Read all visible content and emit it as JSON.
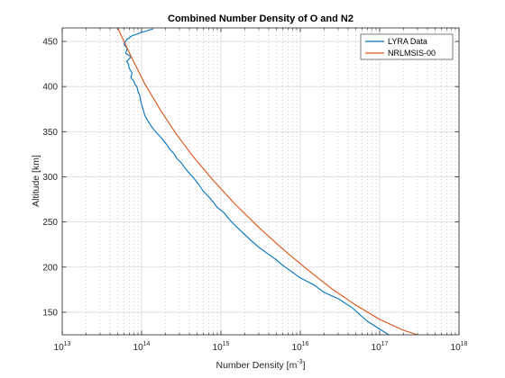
{
  "chart_data": {
    "type": "line",
    "title": "Combined Number Density of O and N2",
    "xlabel": "Number Density [m",
    "xlabel_exp": "-3",
    "xlabel_suffix": "]",
    "ylabel": "Altitude [km]",
    "xscale": "log",
    "xlim": [
      10000000000000.0,
      1e+18
    ],
    "ylim": [
      125,
      465
    ],
    "grid": true,
    "minor_grid": true,
    "legend_position": "top-right",
    "x_ticks": [
      {
        "base": "10",
        "exp": "13"
      },
      {
        "base": "10",
        "exp": "14"
      },
      {
        "base": "10",
        "exp": "15"
      },
      {
        "base": "10",
        "exp": "16"
      },
      {
        "base": "10",
        "exp": "17"
      },
      {
        "base": "10",
        "exp": "18"
      }
    ],
    "y_ticks": [
      "150",
      "200",
      "250",
      "300",
      "350",
      "400",
      "450"
    ],
    "series": [
      {
        "name": "LYRA Data",
        "color": "#0072BD",
        "x": [
          1.3e+17,
          7e+16,
          4.5e+16,
          3e+16,
          2e+16,
          1.5e+16,
          1e+16,
          7500000000000000.0,
          6000000000000000.0,
          5000000000000000.0,
          4000000000000000.0,
          3000000000000000.0,
          2500000000000000.0,
          2000000000000000.0,
          1600000000000000.0,
          1300000000000000.0,
          1100000000000000.0,
          900000000000000.0,
          800000000000000.0,
          700000000000000.0,
          600000000000000.0,
          520000000000000.0,
          460000000000000.0,
          400000000000000.0,
          350000000000000.0,
          320000000000000.0,
          280000000000000.0,
          260000000000000.0,
          230000000000000.0,
          210000000000000.0,
          190000000000000.0,
          170000000000000.0,
          150000000000000.0,
          135000000000000.0,
          120000000000000.0,
          110000000000000.0,
          105000000000000.0,
          100000000000000.0,
          97000000000000.0,
          95000000000000.0,
          90000000000000.0,
          87000000000000.0,
          82000000000000.0,
          80000000000000.0,
          73000000000000.0,
          76000000000000.0,
          70000000000000.0,
          68000000000000.0,
          65000000000000.0,
          74000000000000.0,
          63000000000000.0,
          66000000000000.0,
          60000000000000.0,
          65000000000000.0,
          75000000000000.0,
          100000000000000.0,
          140000000000000.0
        ],
        "y": [
          125,
          140,
          155,
          165,
          172,
          180,
          188,
          196,
          202,
          208,
          214,
          222,
          228,
          236,
          244,
          252,
          260,
          266,
          272,
          278,
          284,
          292,
          298,
          304,
          310,
          315,
          320,
          325,
          330,
          335,
          340,
          345,
          350,
          355,
          362,
          368,
          374,
          380,
          385,
          390,
          395,
          400,
          403,
          406,
          410,
          415,
          420,
          425,
          428,
          433,
          437,
          442,
          447,
          452,
          456,
          460,
          464
        ]
      },
      {
        "name": "NRLMSIS-00",
        "color": "#D95319",
        "x": [
          3e+17,
          2e+17,
          1e+17,
          5e+16,
          2.5e+16,
          1.2e+16,
          6000000000000000.0,
          3000000000000000.0,
          1500000000000000.0,
          800000000000000.0,
          450000000000000.0,
          270000000000000.0,
          170000000000000.0,
          110000000000000.0,
          75000000000000.0,
          50000000000000.0
        ],
        "y": [
          125,
          130,
          142,
          158,
          176,
          198,
          220,
          244,
          270,
          296,
          322,
          348,
          375,
          403,
          432,
          465
        ]
      }
    ]
  }
}
